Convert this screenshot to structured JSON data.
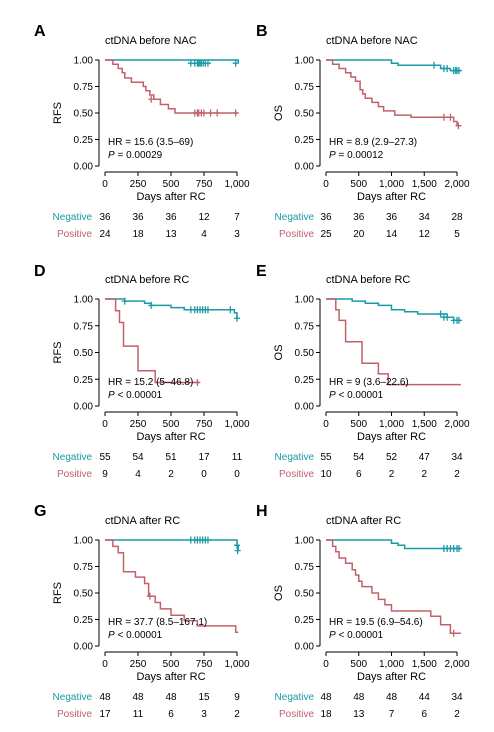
{
  "colors": {
    "negative": "#1a9aa5",
    "positive": "#c0626b",
    "axis": "#000000"
  },
  "risk_labels": {
    "negative": "Negative",
    "positive": "Positive"
  },
  "chart_data": [
    {
      "panel": "A",
      "type": "line",
      "title": "ctDNA before NAC",
      "xlabel": "Days after RC",
      "ylabel": "RFS",
      "xlim": [
        0,
        1000
      ],
      "ylim": [
        0,
        1
      ],
      "xticks": [
        0,
        250,
        500,
        750,
        1000
      ],
      "xtick_labels": [
        "0",
        "250",
        "500",
        "750",
        "1,000"
      ],
      "yticks": [
        0,
        0.25,
        0.5,
        0.75,
        1
      ],
      "ytick_labels": [
        "0.00",
        "0.25",
        "0.50",
        "0.75",
        "1.00"
      ],
      "hr_text": "HR = 15.6 (3.5–69)",
      "p_text": "= 0.00029",
      "p_prefix": "P",
      "series": [
        {
          "group": "negative",
          "steps": [
            [
              0,
              1
            ],
            [
              1010,
              0.97
            ]
          ],
          "end": 1010,
          "censors": [
            [
              650,
              0.97
            ],
            [
              680,
              0.97
            ],
            [
              700,
              0.97
            ],
            [
              710,
              0.97
            ],
            [
              720,
              0.97
            ],
            [
              730,
              0.97
            ],
            [
              745,
              0.97
            ],
            [
              760,
              0.97
            ],
            [
              780,
              0.97
            ],
            [
              990,
              0.97
            ]
          ]
        },
        {
          "group": "positive",
          "steps": [
            [
              0,
              1
            ],
            [
              60,
              0.96
            ],
            [
              100,
              0.92
            ],
            [
              130,
              0.88
            ],
            [
              150,
              0.83
            ],
            [
              200,
              0.79
            ],
            [
              290,
              0.75
            ],
            [
              310,
              0.71
            ],
            [
              340,
              0.67
            ],
            [
              370,
              0.63
            ],
            [
              420,
              0.58
            ],
            [
              480,
              0.54
            ],
            [
              530,
              0.5
            ]
          ],
          "end": 1010,
          "censors": [
            [
              350,
              0.63
            ],
            [
              680,
              0.5
            ],
            [
              700,
              0.5
            ],
            [
              710,
              0.5
            ],
            [
              730,
              0.5
            ],
            [
              750,
              0.5
            ],
            [
              800,
              0.5
            ],
            [
              850,
              0.5
            ],
            [
              990,
              0.5
            ]
          ]
        }
      ],
      "risk": {
        "negative": [
          "36",
          "36",
          "36",
          "12",
          "7"
        ],
        "positive": [
          "24",
          "18",
          "13",
          "4",
          "3"
        ]
      }
    },
    {
      "panel": "B",
      "type": "line",
      "title": "ctDNA before NAC",
      "xlabel": "Days after RC",
      "ylabel": "OS",
      "xlim": [
        0,
        2000
      ],
      "ylim": [
        0,
        1
      ],
      "xticks": [
        0,
        500,
        1000,
        1500,
        2000
      ],
      "xtick_labels": [
        "0",
        "500",
        "1,000",
        "1,500",
        "2,000"
      ],
      "yticks": [
        0,
        0.25,
        0.5,
        0.75,
        1
      ],
      "ytick_labels": [
        "0.00",
        "0.25",
        "0.50",
        "0.75",
        "1.00"
      ],
      "hr_text": "HR = 8.9 (2.9–27.3)",
      "p_text": "= 0.00012",
      "p_prefix": "P",
      "series": [
        {
          "group": "negative",
          "steps": [
            [
              0,
              1
            ],
            [
              1000,
              0.97
            ],
            [
              1100,
              0.95
            ],
            [
              1750,
              0.92
            ],
            [
              1900,
              0.9
            ]
          ],
          "end": 2060,
          "censors": [
            [
              1650,
              0.95
            ],
            [
              1800,
              0.92
            ],
            [
              1850,
              0.92
            ],
            [
              1950,
              0.9
            ],
            [
              1980,
              0.9
            ],
            [
              2000,
              0.9
            ],
            [
              2030,
              0.9
            ]
          ]
        },
        {
          "group": "positive",
          "steps": [
            [
              0,
              1
            ],
            [
              100,
              0.96
            ],
            [
              200,
              0.92
            ],
            [
              300,
              0.88
            ],
            [
              380,
              0.84
            ],
            [
              450,
              0.8
            ],
            [
              520,
              0.72
            ],
            [
              560,
              0.68
            ],
            [
              600,
              0.64
            ],
            [
              700,
              0.6
            ],
            [
              800,
              0.56
            ],
            [
              880,
              0.52
            ],
            [
              1050,
              0.48
            ],
            [
              1300,
              0.46
            ],
            [
              1950,
              0.42
            ],
            [
              2000,
              0.38
            ]
          ],
          "end": 2060,
          "censors": [
            [
              1800,
              0.46
            ],
            [
              1900,
              0.46
            ],
            [
              2020,
              0.38
            ]
          ]
        }
      ],
      "risk": {
        "negative": [
          "36",
          "36",
          "36",
          "34",
          "28"
        ],
        "positive": [
          "25",
          "20",
          "14",
          "12",
          "5"
        ]
      }
    },
    {
      "panel": "D",
      "type": "line",
      "title": "ctDNA before RC",
      "xlabel": "Days after RC",
      "ylabel": "RFS",
      "xlim": [
        0,
        1000
      ],
      "ylim": [
        0,
        1
      ],
      "xticks": [
        0,
        250,
        500,
        750,
        1000
      ],
      "xtick_labels": [
        "0",
        "250",
        "500",
        "750",
        "1,000"
      ],
      "yticks": [
        0,
        0.25,
        0.5,
        0.75,
        1
      ],
      "ytick_labels": [
        "0.00",
        "0.25",
        "0.50",
        "0.75",
        "1.00"
      ],
      "hr_text": "HR = 15.2 (5–46.8)",
      "p_text": "< 0.00001",
      "p_prefix": "P",
      "series": [
        {
          "group": "negative",
          "steps": [
            [
              0,
              1
            ],
            [
              150,
              0.98
            ],
            [
              300,
              0.96
            ],
            [
              350,
              0.94
            ],
            [
              500,
              0.92
            ],
            [
              600,
              0.9
            ],
            [
              980,
              0.87
            ],
            [
              1000,
              0.82
            ]
          ],
          "end": 1010,
          "censors": [
            [
              150,
              0.98
            ],
            [
              350,
              0.94
            ],
            [
              650,
              0.9
            ],
            [
              680,
              0.9
            ],
            [
              700,
              0.9
            ],
            [
              720,
              0.9
            ],
            [
              740,
              0.9
            ],
            [
              760,
              0.9
            ],
            [
              780,
              0.9
            ],
            [
              950,
              0.9
            ],
            [
              1000,
              0.82
            ]
          ]
        },
        {
          "group": "positive",
          "steps": [
            [
              0,
              1
            ],
            [
              80,
              0.89
            ],
            [
              110,
              0.78
            ],
            [
              140,
              0.56
            ],
            [
              250,
              0.33
            ],
            [
              380,
              0.22
            ]
          ],
          "end": 720,
          "censors": [
            [
              700,
              0.22
            ]
          ]
        }
      ],
      "risk": {
        "negative": [
          "55",
          "54",
          "51",
          "17",
          "11"
        ],
        "positive": [
          "9",
          "4",
          "2",
          "0",
          "0"
        ]
      }
    },
    {
      "panel": "E",
      "type": "line",
      "title": "ctDNA before RC",
      "xlabel": "Days after RC",
      "ylabel": "OS",
      "xlim": [
        0,
        2000
      ],
      "ylim": [
        0,
        1
      ],
      "xticks": [
        0,
        500,
        1000,
        1500,
        2000
      ],
      "xtick_labels": [
        "0",
        "500",
        "1,000",
        "1,500",
        "2,000"
      ],
      "yticks": [
        0,
        0.25,
        0.5,
        0.75,
        1
      ],
      "ytick_labels": [
        "0.00",
        "0.25",
        "0.50",
        "0.75",
        "1.00"
      ],
      "hr_text": "HR = 9 (3.6–22.6)",
      "p_text": "< 0.00001",
      "p_prefix": "P",
      "series": [
        {
          "group": "negative",
          "steps": [
            [
              0,
              1
            ],
            [
              400,
              0.98
            ],
            [
              600,
              0.96
            ],
            [
              800,
              0.94
            ],
            [
              1000,
              0.9
            ],
            [
              1200,
              0.88
            ],
            [
              1400,
              0.86
            ],
            [
              1850,
              0.83
            ],
            [
              1950,
              0.8
            ]
          ],
          "end": 2060,
          "censors": [
            [
              1750,
              0.86
            ],
            [
              1800,
              0.83
            ],
            [
              1850,
              0.83
            ],
            [
              1950,
              0.8
            ],
            [
              2000,
              0.8
            ],
            [
              2030,
              0.8
            ]
          ]
        },
        {
          "group": "positive",
          "steps": [
            [
              0,
              1
            ],
            [
              150,
              0.9
            ],
            [
              200,
              0.8
            ],
            [
              300,
              0.6
            ],
            [
              550,
              0.4
            ],
            [
              800,
              0.3
            ],
            [
              950,
              0.2
            ]
          ],
          "end": 2060,
          "censors": []
        }
      ],
      "risk": {
        "negative": [
          "55",
          "54",
          "52",
          "47",
          "34"
        ],
        "positive": [
          "10",
          "6",
          "2",
          "2",
          "2"
        ]
      }
    },
    {
      "panel": "G",
      "type": "line",
      "title": "ctDNA after RC",
      "xlabel": "Days after RC",
      "ylabel": "RFS",
      "xlim": [
        0,
        1000
      ],
      "ylim": [
        0,
        1
      ],
      "xticks": [
        0,
        250,
        500,
        750,
        1000
      ],
      "xtick_labels": [
        "0",
        "250",
        "500",
        "750",
        "1,000"
      ],
      "yticks": [
        0,
        0.25,
        0.5,
        0.75,
        1
      ],
      "ytick_labels": [
        "0.00",
        "0.25",
        "0.50",
        "0.75",
        "1.00"
      ],
      "hr_text": "HR = 37.7 (8.5–167.1)",
      "p_text": "< 0.00001",
      "p_prefix": "P",
      "series": [
        {
          "group": "negative",
          "steps": [
            [
              0,
              1
            ],
            [
              1000,
              0.95
            ],
            [
              1010,
              0.9
            ]
          ],
          "end": 1010,
          "censors": [
            [
              650,
              1
            ],
            [
              680,
              1
            ],
            [
              700,
              1
            ],
            [
              720,
              1
            ],
            [
              740,
              1
            ],
            [
              760,
              1
            ],
            [
              780,
              1
            ],
            [
              1000,
              0.95
            ],
            [
              1005,
              0.9
            ]
          ]
        },
        {
          "group": "positive",
          "steps": [
            [
              0,
              1
            ],
            [
              60,
              0.94
            ],
            [
              100,
              0.88
            ],
            [
              140,
              0.7
            ],
            [
              230,
              0.65
            ],
            [
              300,
              0.59
            ],
            [
              330,
              0.47
            ],
            [
              380,
              0.41
            ],
            [
              420,
              0.35
            ],
            [
              500,
              0.29
            ],
            [
              600,
              0.24
            ],
            [
              700,
              0.19
            ],
            [
              990,
              0.13
            ]
          ],
          "end": 1010,
          "censors": [
            [
              340,
              0.47
            ]
          ]
        }
      ],
      "risk": {
        "negative": [
          "48",
          "48",
          "48",
          "15",
          "9"
        ],
        "positive": [
          "17",
          "11",
          "6",
          "3",
          "2"
        ]
      }
    },
    {
      "panel": "H",
      "type": "line",
      "title": "ctDNA after RC",
      "xlabel": "Days after RC",
      "ylabel": "OS",
      "xlim": [
        0,
        2000
      ],
      "ylim": [
        0,
        1
      ],
      "xticks": [
        0,
        500,
        1000,
        1500,
        2000
      ],
      "xtick_labels": [
        "0",
        "500",
        "1,000",
        "1,500",
        "2,000"
      ],
      "yticks": [
        0,
        0.25,
        0.5,
        0.75,
        1
      ],
      "ytick_labels": [
        "0.00",
        "0.25",
        "0.50",
        "0.75",
        "1.00"
      ],
      "hr_text": "HR = 19.5 (6.9–54.6)",
      "p_text": "< 0.00001",
      "p_prefix": "P",
      "series": [
        {
          "group": "negative",
          "steps": [
            [
              0,
              1
            ],
            [
              1000,
              0.97
            ],
            [
              1100,
              0.95
            ],
            [
              1200,
              0.92
            ]
          ],
          "end": 2060,
          "censors": [
            [
              1800,
              0.92
            ],
            [
              1850,
              0.92
            ],
            [
              1900,
              0.92
            ],
            [
              1950,
              0.92
            ],
            [
              2000,
              0.92
            ],
            [
              2030,
              0.92
            ]
          ]
        },
        {
          "group": "positive",
          "steps": [
            [
              0,
              1
            ],
            [
              100,
              0.94
            ],
            [
              150,
              0.89
            ],
            [
              200,
              0.83
            ],
            [
              300,
              0.78
            ],
            [
              400,
              0.72
            ],
            [
              450,
              0.67
            ],
            [
              500,
              0.61
            ],
            [
              550,
              0.56
            ],
            [
              700,
              0.5
            ],
            [
              800,
              0.44
            ],
            [
              900,
              0.39
            ],
            [
              1000,
              0.33
            ],
            [
              1600,
              0.28
            ],
            [
              1750,
              0.2
            ],
            [
              1900,
              0.12
            ]
          ],
          "end": 2060,
          "censors": [
            [
              1950,
              0.12
            ]
          ]
        }
      ],
      "risk": {
        "negative": [
          "48",
          "48",
          "48",
          "44",
          "34"
        ],
        "positive": [
          "18",
          "13",
          "7",
          "6",
          "2"
        ]
      }
    }
  ]
}
